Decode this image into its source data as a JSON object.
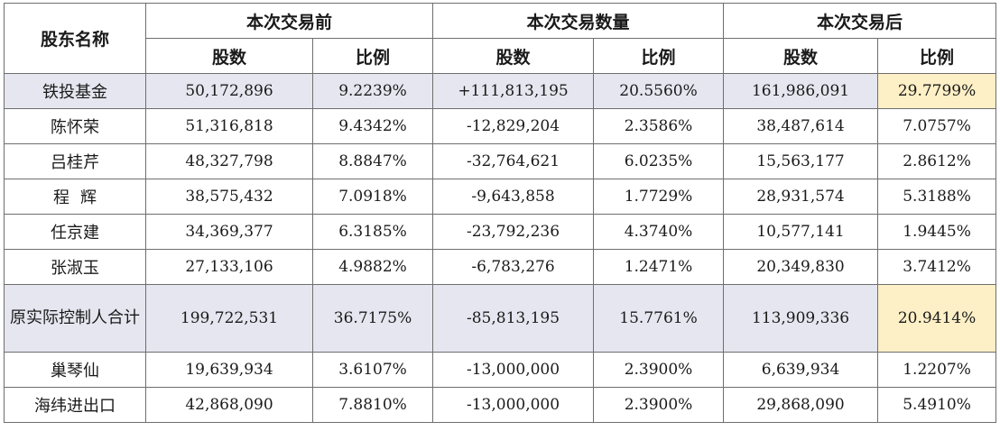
{
  "header": {
    "shareholder": "股东名称",
    "groups": [
      "本次交易前",
      "本次交易数量",
      "本次交易后"
    ],
    "sub": [
      "股数",
      "比例",
      "股数",
      "比例",
      "股数",
      "比例"
    ]
  },
  "rows": [
    {
      "name": "铁投基金",
      "c": [
        "50,172,896",
        "9.2239%",
        "+111,813,195",
        "20.5560%",
        "161,986,091",
        "29.7799%"
      ]
    },
    {
      "name": "陈怀荣",
      "c": [
        "51,316,818",
        "9.4342%",
        "-12,829,204",
        "2.3586%",
        "38,487,614",
        "7.0757%"
      ]
    },
    {
      "name": "吕桂芹",
      "c": [
        "48,327,798",
        "8.8847%",
        "-32,764,621",
        "6.0235%",
        "15,563,177",
        "2.8612%"
      ]
    },
    {
      "name": "程辉",
      "c": [
        "38,575,432",
        "7.0918%",
        "-9,643,858",
        "1.7729%",
        "28,931,574",
        "5.3188%"
      ]
    },
    {
      "name": "任京建",
      "c": [
        "34,369,377",
        "6.3185%",
        "-23,792,236",
        "4.3740%",
        "10,577,141",
        "1.9445%"
      ]
    },
    {
      "name": "张淑玉",
      "c": [
        "27,133,106",
        "4.9882%",
        "-6,783,276",
        "1.2471%",
        "20,349,830",
        "3.7412%"
      ]
    },
    {
      "name": "原实际控制人合计",
      "c": [
        "199,722,531",
        "36.7175%",
        "-85,813,195",
        "15.7761%",
        "113,909,336",
        "20.9414%"
      ]
    },
    {
      "name": "巢琴仙",
      "c": [
        "19,639,934",
        "3.6107%",
        "-13,000,000",
        "2.3900%",
        "6,639,934",
        "1.2207%"
      ]
    },
    {
      "name": "海纬进出口",
      "c": [
        "42,868,090",
        "7.8810%",
        "-13,000,000",
        "2.3900%",
        "29,868,090",
        "5.4910%"
      ]
    }
  ]
}
